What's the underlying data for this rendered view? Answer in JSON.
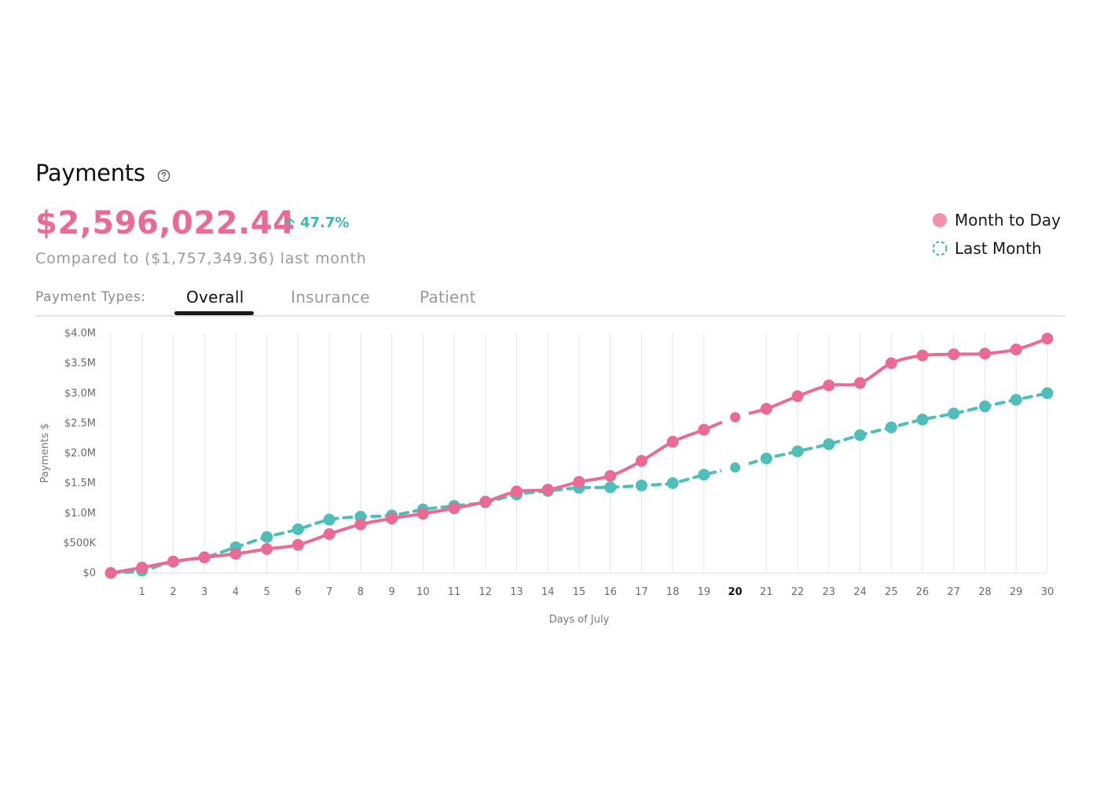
{
  "header": {
    "title": "Payments",
    "amount": "$2,596,022.44",
    "change": "47.7%",
    "compare_text": "Compared to ($1,757,349.36) last month"
  },
  "tabs": {
    "label": "Payment Types:",
    "items": [
      {
        "label": "Overall",
        "active": true
      },
      {
        "label": "Insurance",
        "active": false
      },
      {
        "label": "Patient",
        "active": false
      }
    ]
  },
  "legend": {
    "items": [
      {
        "label": "Month to Day",
        "color": "#f48fab"
      },
      {
        "label": "Last Month",
        "color": "#3ab6b3"
      }
    ]
  },
  "colors": {
    "month_to_day": "#e96b93",
    "last_month": "#4fbdb9",
    "accent_up": "#3ab6b3"
  },
  "icons": {
    "help": "question-circle-icon",
    "change": "arrow-up-icon"
  },
  "chart_data": {
    "type": "line",
    "title": "",
    "xlabel": "Days of July",
    "ylabel": "Payments $",
    "x": [
      0,
      1,
      2,
      3,
      4,
      5,
      6,
      7,
      8,
      9,
      10,
      11,
      12,
      13,
      14,
      15,
      16,
      17,
      18,
      19,
      20,
      21,
      22,
      23,
      24,
      25,
      26,
      27,
      28,
      29,
      30
    ],
    "x_tick_labels": [
      "",
      "1",
      "2",
      "3",
      "4",
      "5",
      "6",
      "7",
      "8",
      "9",
      "10",
      "11",
      "12",
      "13",
      "14",
      "15",
      "16",
      "17",
      "18",
      "19",
      "20",
      "21",
      "22",
      "23",
      "24",
      "25",
      "26",
      "27",
      "28",
      "29",
      "30"
    ],
    "highlight_x": 20,
    "y_ticks": [
      0,
      0.5,
      1.0,
      1.5,
      2.0,
      2.5,
      3.0,
      3.5,
      4.0
    ],
    "y_tick_labels": [
      "$0",
      "$500K",
      "$1.0M",
      "$1.5M",
      "$2.0M",
      "$2.5M",
      "$3.0M",
      "$3.5M",
      "$4.0M"
    ],
    "ylim": [
      0,
      4.0
    ],
    "y_unit": "millions of dollars",
    "grid": "vertical",
    "legend_position": "top-right",
    "series": [
      {
        "name": "Month to Day",
        "style": "solid",
        "values": [
          0.0,
          0.09,
          0.19,
          0.26,
          0.32,
          0.4,
          0.47,
          0.65,
          0.81,
          0.91,
          0.99,
          1.08,
          1.19,
          1.36,
          1.39,
          1.52,
          1.62,
          1.87,
          2.19,
          2.39,
          2.6,
          2.74,
          2.95,
          3.13,
          3.17,
          3.5,
          3.63,
          3.65,
          3.66,
          3.73,
          3.91
        ]
      },
      {
        "name": "Last Month",
        "style": "dashed",
        "values": [
          0.0,
          0.04,
          0.19,
          0.26,
          0.43,
          0.6,
          0.73,
          0.89,
          0.94,
          0.96,
          1.06,
          1.12,
          1.18,
          1.31,
          1.37,
          1.42,
          1.43,
          1.46,
          1.5,
          1.64,
          1.76,
          1.91,
          2.03,
          2.15,
          2.3,
          2.43,
          2.56,
          2.66,
          2.78,
          2.89,
          3.0
        ]
      }
    ]
  }
}
